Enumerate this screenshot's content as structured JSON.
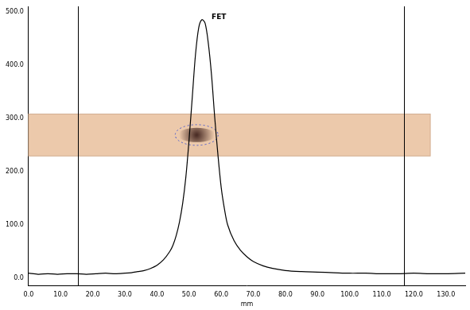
{
  "chart_data": {
    "type": "line",
    "x_label": "mm",
    "x": [
      0,
      3,
      6,
      9,
      12,
      15,
      18,
      21,
      24,
      27,
      30,
      32,
      34,
      36,
      38,
      40,
      42,
      44,
      45,
      46,
      47,
      48,
      49,
      50,
      51,
      52,
      53,
      54,
      55,
      56,
      57,
      58,
      59,
      60,
      61,
      62,
      64,
      66,
      68,
      70,
      73,
      76,
      80,
      85,
      90,
      95,
      100,
      105,
      110,
      115,
      120,
      125,
      130,
      136
    ],
    "values": [
      9,
      7,
      8,
      7,
      8,
      8,
      7,
      8,
      9,
      8,
      9,
      10,
      12,
      14,
      18,
      24,
      34,
      50,
      62,
      80,
      105,
      140,
      190,
      260,
      340,
      420,
      470,
      485,
      478,
      440,
      380,
      300,
      230,
      170,
      130,
      100,
      70,
      52,
      40,
      31,
      23,
      18,
      14,
      12,
      11,
      10,
      9,
      9,
      8,
      8,
      9,
      8,
      8,
      9
    ],
    "color": "#000000",
    "xlim": [
      0,
      136
    ],
    "ylim": [
      -15,
      510
    ],
    "xticks": [
      {
        "value": 0,
        "label": "0.0"
      },
      {
        "value": 10,
        "label": "10.0"
      },
      {
        "value": 20,
        "label": "20.0"
      },
      {
        "value": 30,
        "label": "30.0"
      },
      {
        "value": 40,
        "label": "40.0"
      },
      {
        "value": 50,
        "label": "50.0"
      },
      {
        "value": 60,
        "label": "60.0"
      },
      {
        "value": 70,
        "label": "70.0"
      },
      {
        "value": 80,
        "label": "80.0"
      },
      {
        "value": 90,
        "label": "90.0"
      },
      {
        "value": 100,
        "label": "100.0"
      },
      {
        "value": 110,
        "label": "110.0"
      },
      {
        "value": 120,
        "label": "120.0"
      },
      {
        "value": 130,
        "label": "130.0"
      }
    ],
    "yticks": [
      {
        "value": 0,
        "label": "0.0"
      },
      {
        "value": 100,
        "label": "100.0"
      },
      {
        "value": 200,
        "label": "200.0"
      },
      {
        "value": 300,
        "label": "300.0"
      },
      {
        "value": 400,
        "label": "400.0"
      },
      {
        "value": 500,
        "label": "500.0"
      }
    ],
    "vlines": [
      15.5,
      117
    ],
    "annotations": [
      {
        "text": "FET",
        "x": 57,
        "y": 490
      }
    ],
    "grid": false
  }
}
